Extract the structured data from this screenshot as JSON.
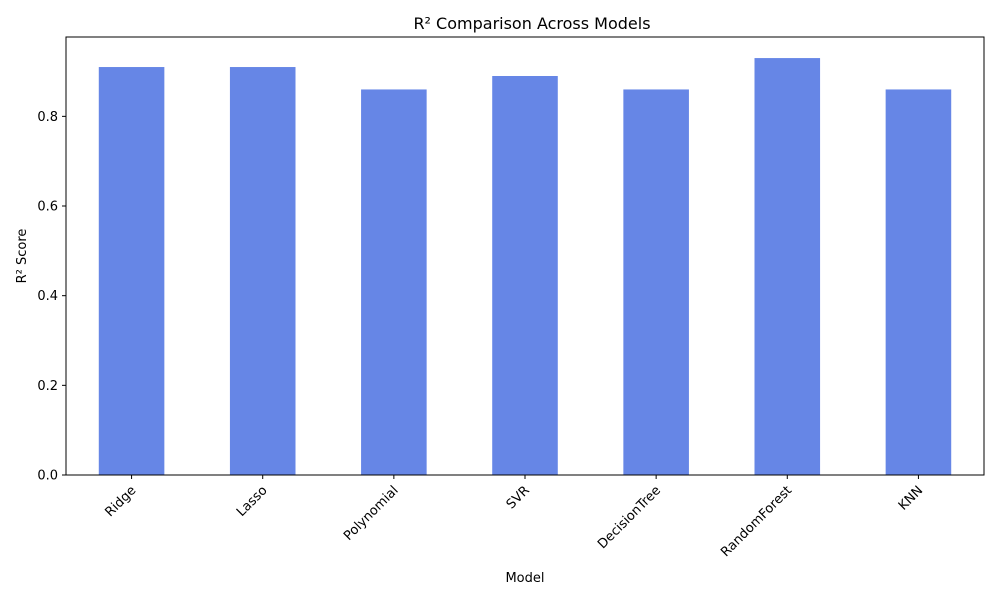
{
  "chart_data": {
    "type": "bar",
    "title": "R² Comparison Across Models",
    "xlabel": "Model",
    "ylabel": "R² Score",
    "categories": [
      "Ridge",
      "Lasso",
      "Polynomial",
      "SVR",
      "DecisionTree",
      "RandomForest",
      "KNN"
    ],
    "values": [
      0.91,
      0.91,
      0.86,
      0.89,
      0.86,
      0.93,
      0.86
    ],
    "ylim": [
      0,
      0.977
    ],
    "yticks": [
      0.0,
      0.2,
      0.4,
      0.6,
      0.8
    ],
    "ytick_labels": [
      "0.0",
      "0.2",
      "0.4",
      "0.6",
      "0.8"
    ],
    "bar_color": "#6686e6",
    "grid": false,
    "legend": "none",
    "xtick_rotation_deg": 45
  }
}
